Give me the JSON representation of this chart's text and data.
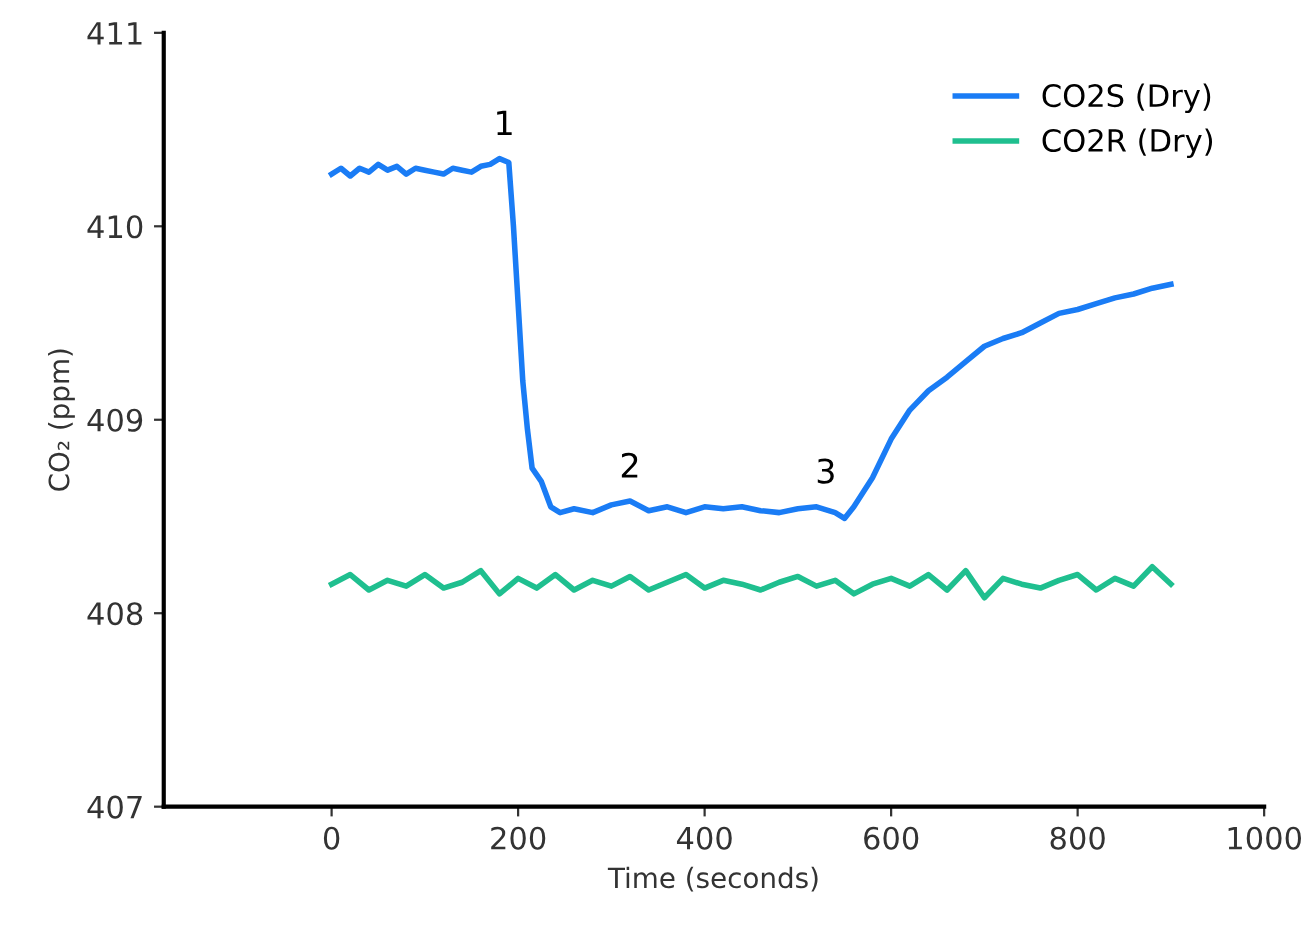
{
  "chart_data": {
    "type": "line",
    "xlabel": "Time (seconds)",
    "ylabel": "CO₂ (ppm)",
    "xlim": [
      -180,
      1000
    ],
    "xticks": [
      0,
      200,
      400,
      600,
      800,
      1000
    ],
    "ylim": [
      407,
      411
    ],
    "yticks": [
      407,
      408,
      409,
      410,
      411
    ],
    "grid": false,
    "legend": "top right",
    "line_style": "solid",
    "marker": "none",
    "annotations": [
      {
        "text": "1",
        "x": 185,
        "y": 410.35
      },
      {
        "text": "2",
        "x": 320,
        "y": 408.58
      },
      {
        "text": "3",
        "x": 530,
        "y": 408.55
      }
    ],
    "series": [
      {
        "name": "CO2S (Dry)",
        "color": "#1a7cf5",
        "x": [
          0,
          10,
          20,
          30,
          40,
          50,
          60,
          70,
          80,
          90,
          100,
          110,
          120,
          130,
          140,
          150,
          160,
          170,
          180,
          190,
          195,
          200,
          205,
          210,
          215,
          225,
          235,
          245,
          260,
          280,
          300,
          320,
          340,
          360,
          380,
          400,
          420,
          440,
          460,
          480,
          500,
          520,
          540,
          550,
          560,
          580,
          600,
          620,
          640,
          660,
          680,
          700,
          720,
          740,
          760,
          780,
          800,
          820,
          840,
          860,
          880,
          900
        ],
        "values": [
          410.27,
          410.3,
          410.26,
          410.3,
          410.28,
          410.32,
          410.29,
          410.31,
          410.27,
          410.3,
          410.29,
          410.28,
          410.27,
          410.3,
          410.29,
          410.28,
          410.31,
          410.32,
          410.35,
          410.33,
          410.0,
          409.6,
          409.2,
          408.95,
          408.75,
          408.68,
          408.55,
          408.52,
          408.54,
          408.52,
          408.56,
          408.58,
          408.53,
          408.55,
          408.52,
          408.55,
          408.54,
          408.55,
          408.53,
          408.52,
          408.54,
          408.55,
          408.52,
          408.49,
          408.55,
          408.7,
          408.9,
          409.05,
          409.15,
          409.22,
          409.3,
          409.38,
          409.42,
          409.45,
          409.5,
          409.55,
          409.57,
          409.6,
          409.63,
          409.65,
          409.68,
          409.7
        ]
      },
      {
        "name": "CO2R (Dry)",
        "color": "#1fbf8f",
        "x": [
          0,
          20,
          40,
          60,
          80,
          100,
          120,
          140,
          160,
          180,
          200,
          220,
          240,
          260,
          280,
          300,
          320,
          340,
          360,
          380,
          400,
          420,
          440,
          460,
          480,
          500,
          520,
          540,
          560,
          580,
          600,
          620,
          640,
          660,
          680,
          700,
          720,
          740,
          760,
          780,
          800,
          820,
          840,
          860,
          880,
          900
        ],
        "values": [
          408.15,
          408.2,
          408.12,
          408.17,
          408.14,
          408.2,
          408.13,
          408.16,
          408.22,
          408.1,
          408.18,
          408.13,
          408.2,
          408.12,
          408.17,
          408.14,
          408.19,
          408.12,
          408.16,
          408.2,
          408.13,
          408.17,
          408.15,
          408.12,
          408.16,
          408.19,
          408.14,
          408.17,
          408.1,
          408.15,
          408.18,
          408.14,
          408.2,
          408.12,
          408.22,
          408.08,
          408.18,
          408.15,
          408.13,
          408.17,
          408.2,
          408.12,
          408.18,
          408.14,
          408.24,
          408.15
        ]
      }
    ]
  }
}
